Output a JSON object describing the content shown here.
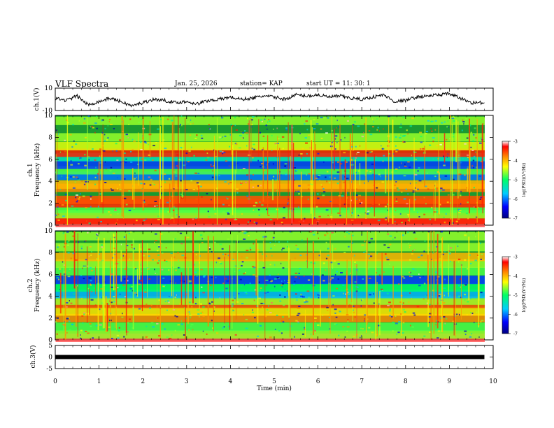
{
  "header": {
    "title": "VLF Spectra",
    "date": "Jan. 25, 2026",
    "station": "station= KAP",
    "start": "start  UT  =   11: 30: 1"
  },
  "colors": {
    "waveform": "#000000",
    "digital_bar": "#000000",
    "colorbar_stops": [
      "#000080",
      "#0000ff",
      "#00ccff",
      "#00ff66",
      "#ffff00",
      "#ff8800",
      "#ff0000",
      "#ffffff"
    ],
    "spectrogram_base": "#1a9a30"
  },
  "chart_data": [
    {
      "type": "line",
      "panel": "channel-1-waveform",
      "ylabel": "ch.1(V)",
      "ylim": [
        -10,
        10
      ],
      "yticks": [
        "10",
        "-10"
      ],
      "x": [
        0,
        0.25,
        0.5,
        0.75,
        1.0,
        1.25,
        1.5,
        1.75,
        2.0,
        2.25,
        2.5,
        2.75,
        3.0,
        3.25,
        3.5,
        3.75,
        4.0,
        4.25,
        4.5,
        4.75,
        5.0,
        5.25,
        5.5,
        5.75,
        6.0,
        6.25,
        6.5,
        6.75,
        7.0,
        7.25,
        7.5,
        7.75,
        8.0,
        8.25,
        8.5,
        8.75,
        9.0,
        9.25,
        9.5,
        9.8
      ],
      "values": [
        1,
        -1,
        3,
        -5,
        -2,
        1,
        -2,
        -6,
        -3,
        0,
        -1,
        -3,
        -2,
        -4,
        -1,
        0,
        2,
        0,
        1,
        3,
        2,
        0,
        4,
        3,
        4,
        2,
        3,
        1,
        0,
        2,
        4,
        -2,
        -1,
        2,
        3,
        4,
        5,
        1,
        -3,
        -3
      ]
    },
    {
      "type": "heatmap",
      "panel": "channel-1-spectrogram",
      "ylabel_top": "ch.1",
      "ylabel": "Frequency (kHz)",
      "ylim": [
        0,
        10
      ],
      "yticks": [
        "0",
        "2",
        "4",
        "6",
        "8",
        "10"
      ],
      "bands": [
        {
          "freq": 0.2,
          "level": 0.95
        },
        {
          "freq": 0.5,
          "level": 0.9
        },
        {
          "freq": 1.0,
          "level": 0.6
        },
        {
          "freq": 1.5,
          "level": 0.55
        },
        {
          "freq": 2.0,
          "level": 0.9
        },
        {
          "freq": 2.3,
          "level": 0.85
        },
        {
          "freq": 3.4,
          "level": 0.8
        },
        {
          "freq": 3.7,
          "level": 0.75
        },
        {
          "freq": 4.5,
          "level": 0.25
        },
        {
          "freq": 5.0,
          "level": 0.55
        },
        {
          "freq": 5.5,
          "level": 0.2
        },
        {
          "freq": 6.2,
          "level": 0.4
        },
        {
          "freq": 6.6,
          "level": 0.9
        },
        {
          "freq": 7.2,
          "level": 0.65
        },
        {
          "freq": 8.0,
          "level": 0.6
        },
        {
          "freq": 9.5,
          "level": 0.6
        }
      ],
      "colorbar": {
        "label": "log(PSD)(V²/Hz)",
        "ticks": [
          "-3",
          "-4",
          "-5",
          "-6",
          "-7"
        ],
        "range": [
          -7,
          -3
        ]
      }
    },
    {
      "type": "heatmap",
      "panel": "channel-2-spectrogram",
      "ylabel_top": "ch.2",
      "ylabel": "Frequency (kHz)",
      "ylim": [
        0,
        10
      ],
      "yticks": [
        "0",
        "2",
        "4",
        "6",
        "8",
        "10"
      ],
      "bands": [
        {
          "freq": 0.2,
          "level": 0.95
        },
        {
          "freq": 0.5,
          "level": 0.6
        },
        {
          "freq": 1.2,
          "level": 0.55
        },
        {
          "freq": 2.0,
          "level": 0.8
        },
        {
          "freq": 2.6,
          "level": 0.7
        },
        {
          "freq": 3.3,
          "level": 0.85
        },
        {
          "freq": 3.6,
          "level": 0.6
        },
        {
          "freq": 4.2,
          "level": 0.3
        },
        {
          "freq": 4.8,
          "level": 0.5
        },
        {
          "freq": 5.5,
          "level": 0.2
        },
        {
          "freq": 6.3,
          "level": 0.55
        },
        {
          "freq": 7.0,
          "level": 0.6
        },
        {
          "freq": 7.6,
          "level": 0.75
        },
        {
          "freq": 8.5,
          "level": 0.6
        },
        {
          "freq": 9.5,
          "level": 0.6
        }
      ],
      "colorbar": {
        "label": "log(PSD)(V²/Hz)",
        "ticks": [
          "-3",
          "-4",
          "-5",
          "-6",
          "-7"
        ],
        "range": [
          -7,
          -3
        ]
      }
    },
    {
      "type": "line",
      "panel": "channel-3-waveform",
      "ylabel": "ch.3(V)",
      "ylim": [
        -5,
        5
      ],
      "yticks": [
        "5",
        "0",
        "-5"
      ],
      "x": [
        0,
        9.8
      ],
      "values": [
        0,
        0
      ]
    }
  ],
  "xaxis": {
    "label": "Time (min)",
    "ticks": [
      "0",
      "1",
      "2",
      "3",
      "4",
      "5",
      "6",
      "7",
      "8",
      "9",
      "10"
    ],
    "xlim": [
      0,
      10
    ]
  }
}
